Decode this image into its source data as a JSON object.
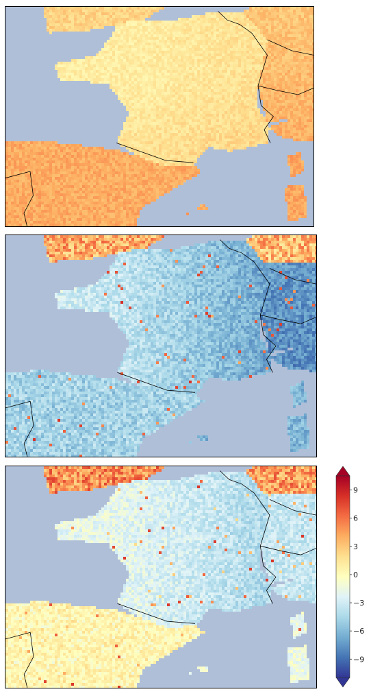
{
  "panels": [
    {
      "id": "panel-1",
      "theme": "warm"
    },
    {
      "id": "panel-2",
      "theme": "cool"
    },
    {
      "id": "panel-3",
      "theme": "mixed"
    }
  ],
  "colorbar": {
    "ticks": [
      "9",
      "6",
      "3",
      "0",
      "−3",
      "−6",
      "−9"
    ],
    "range": [
      -10,
      10
    ],
    "extend": "both",
    "colormap": [
      "#313695",
      "#4575b4",
      "#74add1",
      "#abd9e9",
      "#e0f3f8",
      "#ffffbf",
      "#fee090",
      "#fdae61",
      "#f46d43",
      "#d73027",
      "#a50026"
    ]
  },
  "colors": {
    "sea": "#b0bfd8",
    "border": "#000000"
  }
}
